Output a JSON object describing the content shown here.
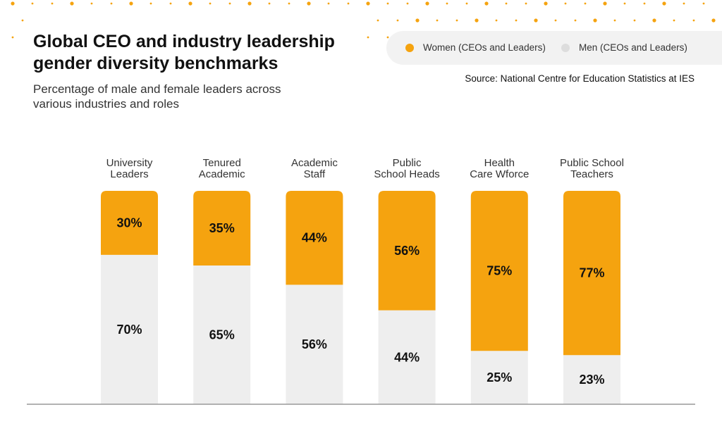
{
  "header": {
    "title": "Global CEO and industry leadership gender diversity benchmarks",
    "subtitle": "Percentage of male and female leaders across various industries and roles",
    "source": "Source: National Centre for Education Statistics at IES"
  },
  "legend": {
    "women_label": "Women (CEOs and Leaders)",
    "men_label": "Men (CEOs and Leaders)"
  },
  "colors": {
    "women": "#F5A30F",
    "men": "#EEEEEE",
    "dots": "#F5A30F",
    "axis": "#999999"
  },
  "chart_data": {
    "type": "bar",
    "stacked": true,
    "categories": [
      [
        "University",
        "Leaders"
      ],
      [
        "Tenured",
        "Academic"
      ],
      [
        "Academic",
        "Staff"
      ],
      [
        "Public",
        "School Heads"
      ],
      [
        "Health",
        "Care Wforce"
      ],
      [
        "Public School",
        "Teachers"
      ]
    ],
    "series": [
      {
        "name": "Women (CEOs and Leaders)",
        "values": [
          30,
          35,
          44,
          56,
          75,
          77
        ],
        "labels": [
          "30%",
          "35%",
          "44%",
          "56%",
          "75%",
          "77%"
        ]
      },
      {
        "name": "Men (CEOs and Leaders)",
        "values": [
          70,
          65,
          56,
          44,
          25,
          23
        ],
        "labels": [
          "70%",
          "65%",
          "56%",
          "44%",
          "25%",
          "23%"
        ]
      }
    ],
    "ylim": [
      0,
      100
    ],
    "grid": false,
    "legend_position": "top-right"
  }
}
